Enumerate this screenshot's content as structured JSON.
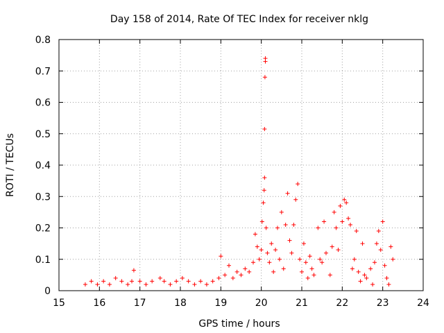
{
  "chart_data": {
    "type": "scatter",
    "title": "Day 158 of 2014, Rate Of TEC Index for receiver nklg",
    "xlabel": "GPS time / hours",
    "ylabel": "ROTI / TECUs",
    "xlim": [
      15,
      24
    ],
    "ylim": [
      0,
      0.8
    ],
    "x_ticks": [
      15,
      16,
      17,
      18,
      19,
      20,
      21,
      22,
      23,
      24
    ],
    "x_tick_labels": [
      "15",
      "16",
      "17",
      "18",
      "19",
      "20",
      "21",
      "22",
      "23",
      "24"
    ],
    "y_ticks": [
      0,
      0.1,
      0.2,
      0.3,
      0.4,
      0.5,
      0.6,
      0.7,
      0.8
    ],
    "y_tick_labels": [
      "0",
      "0.1",
      "0.2",
      "0.3",
      "0.4",
      "0.5",
      "0.6",
      "0.7",
      "0.8"
    ],
    "grid": true,
    "marker": "+",
    "series": [
      {
        "name": "ROTI",
        "color": "#ff0000",
        "x": [
          15.65,
          15.8,
          15.95,
          16.1,
          16.25,
          16.4,
          16.55,
          16.7,
          16.8,
          16.85,
          17.0,
          17.15,
          17.3,
          17.5,
          17.6,
          17.75,
          17.9,
          18.05,
          18.2,
          18.35,
          18.5,
          18.65,
          18.8,
          18.95,
          19.0,
          19.1,
          19.2,
          19.3,
          19.4,
          19.5,
          19.6,
          19.7,
          19.8,
          19.85,
          19.9,
          19.95,
          20.0,
          20.02,
          20.05,
          20.07,
          20.08,
          20.08,
          20.09,
          20.1,
          20.1,
          20.12,
          20.15,
          20.2,
          20.25,
          20.3,
          20.35,
          20.4,
          20.45,
          20.5,
          20.55,
          20.6,
          20.65,
          20.7,
          20.75,
          20.8,
          20.85,
          20.9,
          20.95,
          21.0,
          21.05,
          21.1,
          21.15,
          21.2,
          21.25,
          21.3,
          21.4,
          21.45,
          21.5,
          21.55,
          21.6,
          21.7,
          21.75,
          21.8,
          21.85,
          21.9,
          21.95,
          22.0,
          22.05,
          22.1,
          22.15,
          22.2,
          22.25,
          22.3,
          22.35,
          22.4,
          22.45,
          22.5,
          22.55,
          22.6,
          22.7,
          22.75,
          22.8,
          22.85,
          22.9,
          22.95,
          23.0,
          23.05,
          23.1,
          23.15,
          23.2,
          23.25
        ],
        "y": [
          0.02,
          0.03,
          0.02,
          0.03,
          0.02,
          0.04,
          0.03,
          0.02,
          0.03,
          0.065,
          0.03,
          0.02,
          0.03,
          0.04,
          0.03,
          0.02,
          0.03,
          0.04,
          0.03,
          0.02,
          0.03,
          0.02,
          0.03,
          0.04,
          0.11,
          0.05,
          0.08,
          0.04,
          0.06,
          0.05,
          0.07,
          0.06,
          0.09,
          0.18,
          0.14,
          0.1,
          0.13,
          0.22,
          0.28,
          0.32,
          0.36,
          0.515,
          0.68,
          0.73,
          0.74,
          0.2,
          0.12,
          0.09,
          0.15,
          0.06,
          0.13,
          0.2,
          0.1,
          0.25,
          0.07,
          0.21,
          0.31,
          0.16,
          0.12,
          0.21,
          0.29,
          0.34,
          0.1,
          0.06,
          0.15,
          0.09,
          0.04,
          0.11,
          0.07,
          0.05,
          0.2,
          0.1,
          0.09,
          0.22,
          0.12,
          0.05,
          0.14,
          0.25,
          0.2,
          0.13,
          0.27,
          0.22,
          0.29,
          0.28,
          0.23,
          0.21,
          0.07,
          0.1,
          0.19,
          0.06,
          0.03,
          0.15,
          0.05,
          0.04,
          0.07,
          0.02,
          0.09,
          0.15,
          0.19,
          0.13,
          0.22,
          0.08,
          0.04,
          0.02,
          0.14,
          0.1
        ]
      }
    ]
  }
}
